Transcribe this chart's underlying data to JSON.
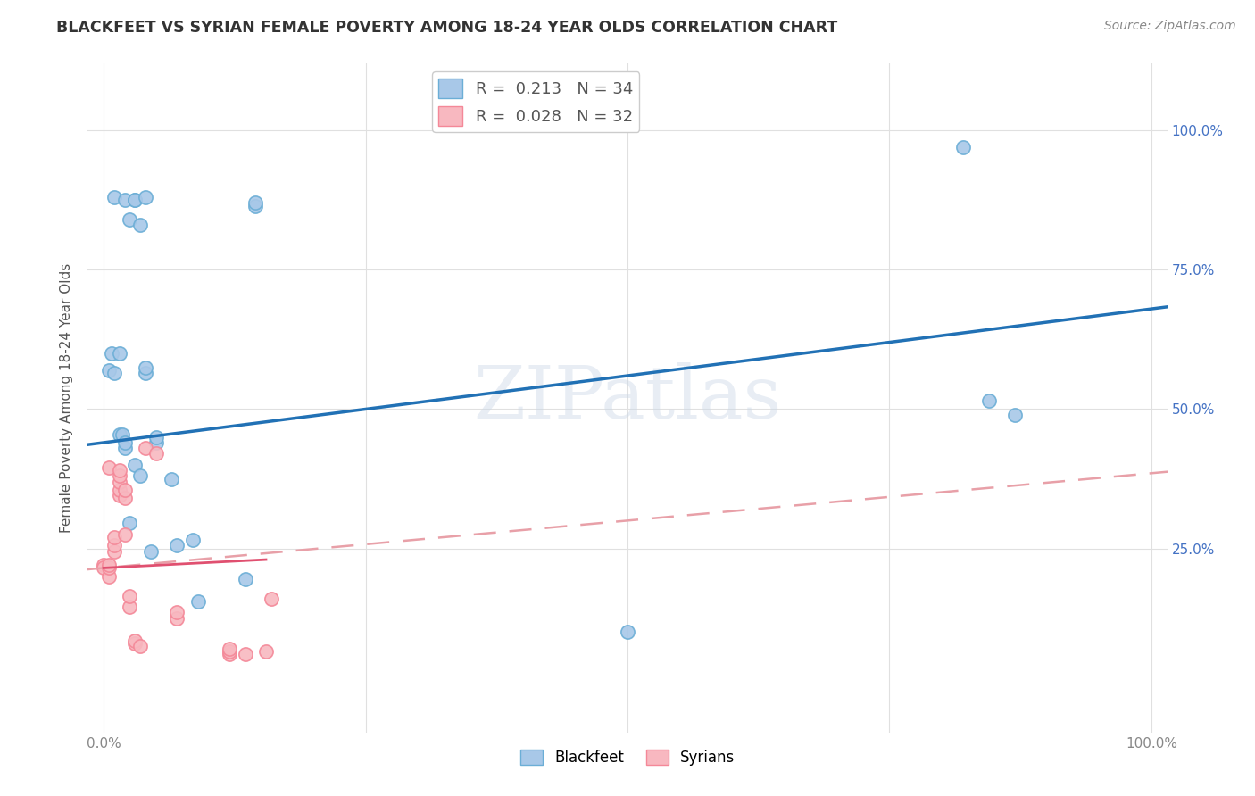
{
  "title": "BLACKFEET VS SYRIAN FEMALE POVERTY AMONG 18-24 YEAR OLDS CORRELATION CHART",
  "source": "Source: ZipAtlas.com",
  "ylabel": "Female Poverty Among 18-24 Year Olds",
  "blackfeet_color": "#a8c8e8",
  "blackfeet_edge_color": "#6baed6",
  "syrian_color": "#f8b8c0",
  "syrian_edge_color": "#f48898",
  "blackfeet_line_color": "#2171b5",
  "syrian_solid_color": "#e05070",
  "syrian_dash_color": "#e8a0a8",
  "watermark": "ZIPatlas",
  "legend_blackfeet_R": "0.213",
  "legend_blackfeet_N": "34",
  "legend_syrian_R": "0.028",
  "legend_syrian_N": "32",
  "blackfeet_x": [
    0.01,
    0.02,
    0.025,
    0.03,
    0.03,
    0.035,
    0.04,
    0.04,
    0.045,
    0.005,
    0.008,
    0.01,
    0.015,
    0.015,
    0.018,
    0.02,
    0.02,
    0.025,
    0.03,
    0.035,
    0.04,
    0.05,
    0.05,
    0.065,
    0.07,
    0.085,
    0.09,
    0.135,
    0.145,
    0.145,
    0.5,
    0.82,
    0.845,
    0.87
  ],
  "blackfeet_y": [
    0.88,
    0.875,
    0.84,
    0.875,
    0.875,
    0.83,
    0.88,
    0.565,
    0.245,
    0.57,
    0.6,
    0.565,
    0.6,
    0.455,
    0.455,
    0.43,
    0.44,
    0.295,
    0.4,
    0.38,
    0.575,
    0.44,
    0.45,
    0.375,
    0.255,
    0.265,
    0.155,
    0.195,
    0.865,
    0.87,
    0.1,
    0.97,
    0.515,
    0.49
  ],
  "syrian_x": [
    0.0,
    0.0,
    0.005,
    0.005,
    0.005,
    0.005,
    0.01,
    0.01,
    0.01,
    0.015,
    0.015,
    0.015,
    0.015,
    0.015,
    0.02,
    0.02,
    0.02,
    0.025,
    0.025,
    0.03,
    0.03,
    0.035,
    0.04,
    0.05,
    0.07,
    0.07,
    0.12,
    0.12,
    0.12,
    0.135,
    0.155,
    0.16
  ],
  "syrian_y": [
    0.22,
    0.215,
    0.2,
    0.215,
    0.22,
    0.395,
    0.245,
    0.255,
    0.27,
    0.345,
    0.355,
    0.37,
    0.38,
    0.39,
    0.275,
    0.34,
    0.355,
    0.145,
    0.165,
    0.08,
    0.085,
    0.075,
    0.43,
    0.42,
    0.125,
    0.135,
    0.06,
    0.065,
    0.07,
    0.06,
    0.065,
    0.16
  ],
  "background_color": "#ffffff",
  "grid_color": "#e0e0e0",
  "xlim": [
    -0.015,
    1.015
  ],
  "ylim": [
    -0.08,
    1.12
  ],
  "ytick_right_color": "#4472c4"
}
